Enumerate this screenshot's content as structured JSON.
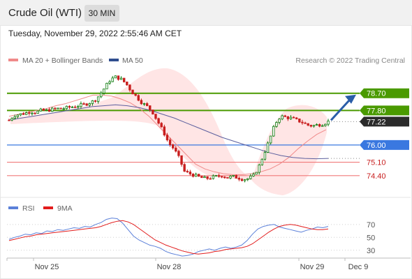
{
  "header": {
    "title": "Crude Oil (WTI)",
    "timeframe": "30 MIN"
  },
  "timestamp": "Tuesday, November 29, 2022 2:55:46 AM CET",
  "legend": {
    "ma20": "MA 20 + Bollinger Bands",
    "ma50": "MA 50",
    "copyright": "Research © 2022 Trading Central"
  },
  "colors": {
    "up_candle": "#0b7a0b",
    "down_candle": "#c81e1e",
    "ma20": "#f08a8a",
    "ma50": "#5b5f9e",
    "bollinger": "#ffd3d3",
    "resistance": "#4a9a00",
    "pivot": "#3a78e0",
    "support": "#f07a7a",
    "rsi": "#5b80d9",
    "rsi_ma": "#e21c1c",
    "arrow": "#2a5da8"
  },
  "chart_data": [
    {
      "type": "candlestick",
      "title": "Crude Oil (WTI)",
      "timeframe": "30 MIN",
      "x_ticks": [
        "Nov 25",
        "Nov 28",
        "Nov 29",
        "Dec 9"
      ],
      "ylim": [
        73.3,
        80.0
      ],
      "last_price": 77.22,
      "levels": [
        {
          "label": "78.70",
          "value": 78.7,
          "kind": "resistance"
        },
        {
          "label": "77.80",
          "value": 77.8,
          "kind": "resistance"
        },
        {
          "label": "76.00",
          "value": 76.0,
          "kind": "pivot"
        },
        {
          "label": "75.10",
          "value": 75.1,
          "kind": "support"
        },
        {
          "label": "74.40",
          "value": 74.4,
          "kind": "support"
        }
      ],
      "price_path": [
        77.3,
        77.55,
        77.6,
        77.65,
        77.75,
        77.7,
        77.8,
        77.8,
        77.85,
        77.9,
        77.9,
        77.95,
        78.0,
        78.05,
        78.1,
        78.2,
        78.3,
        78.6,
        79.0,
        79.4,
        79.55,
        79.45,
        79.2,
        78.8,
        78.5,
        78.2,
        78.0,
        77.7,
        77.2,
        76.7,
        76.1,
        75.8,
        75.3,
        74.6,
        74.5,
        74.4,
        74.3,
        74.25,
        74.3,
        74.35,
        74.4,
        74.3,
        74.35,
        74.3,
        74.2,
        74.25,
        74.4,
        74.9,
        75.6,
        76.3,
        77.1,
        77.5,
        77.45,
        77.4,
        77.3,
        77.2,
        77.05,
        77.0,
        77.05,
        77.1,
        77.22
      ],
      "series": [
        {
          "name": "MA 20",
          "values": [
            77.5,
            77.6,
            77.7,
            77.8,
            77.9,
            78.05,
            78.15,
            78.3,
            78.45,
            78.6,
            78.6,
            78.55,
            78.4,
            78.2,
            77.9,
            77.5,
            77.0,
            76.5,
            76.0,
            75.5,
            75.0,
            74.75,
            74.6,
            74.5,
            74.45,
            74.45,
            74.5,
            74.6,
            74.75,
            75.0,
            75.35,
            75.8,
            76.2,
            76.55,
            76.8
          ]
        },
        {
          "name": "MA 50",
          "values": [
            77.3,
            77.4,
            77.5,
            77.6,
            77.7,
            77.8,
            77.9,
            78.0,
            78.05,
            78.1,
            78.05,
            77.95,
            77.8,
            77.6,
            77.4,
            77.15,
            76.9,
            76.65,
            76.4,
            76.2,
            76.0,
            75.8,
            75.6,
            75.45,
            75.35,
            75.3,
            75.28,
            75.3
          ]
        }
      ],
      "forecast_arrow": {
        "from": 77.22,
        "to": 78.7
      }
    },
    {
      "type": "line",
      "title": "RSI",
      "legend": [
        "RSI",
        "9MA"
      ],
      "ylim": [
        20,
        85
      ],
      "y_ticks": [
        "70",
        "50",
        "30"
      ],
      "series": [
        {
          "name": "RSI",
          "values": [
            47,
            50,
            52,
            55,
            54,
            57,
            56,
            60,
            59,
            62,
            61,
            63,
            65,
            64,
            67,
            66,
            70,
            73,
            78,
            80,
            79,
            72,
            62,
            52,
            46,
            42,
            38,
            36,
            33,
            28,
            25,
            23,
            21,
            22,
            24,
            28,
            30,
            32,
            30,
            33,
            35,
            33,
            35,
            38,
            45,
            55,
            63,
            67,
            69,
            70,
            66,
            64,
            62,
            60,
            58,
            61,
            63,
            66,
            65,
            67
          ]
        },
        {
          "name": "9MA",
          "values": [
            45,
            47,
            49,
            51,
            52,
            54,
            55,
            56,
            57,
            58,
            59,
            60,
            61,
            62,
            63,
            64,
            65,
            67,
            70,
            73,
            75,
            76,
            74,
            70,
            64,
            58,
            52,
            46,
            42,
            38,
            35,
            32,
            29,
            27,
            25,
            24,
            25,
            26,
            28,
            29,
            31,
            32,
            33,
            34,
            36,
            40,
            46,
            52,
            58,
            63,
            67,
            69,
            70,
            69,
            67,
            65,
            63,
            62,
            62,
            63
          ]
        }
      ]
    }
  ]
}
